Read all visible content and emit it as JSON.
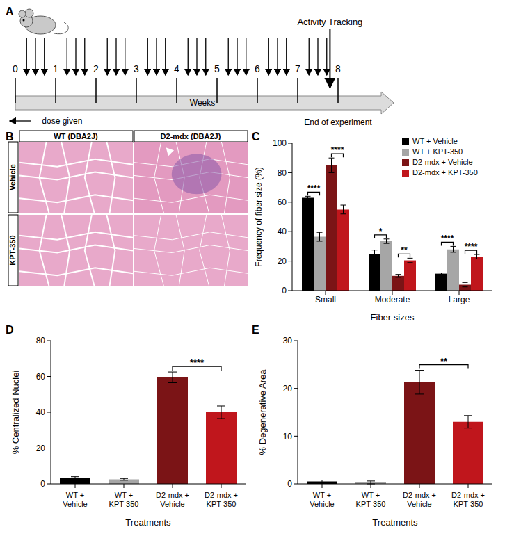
{
  "panel_labels": [
    "A",
    "B",
    "C",
    "D",
    "E"
  ],
  "timeline": {
    "xlim": [
      0,
      8
    ],
    "xticks": [
      0,
      1,
      2,
      3,
      4,
      5,
      6,
      7,
      8
    ],
    "axis_label": "Weeks",
    "doses": [
      0.28,
      0.5,
      0.72,
      1.28,
      1.5,
      1.72,
      2.28,
      2.5,
      2.72,
      3.28,
      3.5,
      3.72,
      4.28,
      4.5,
      4.72,
      5.28,
      5.5,
      5.72,
      6.28,
      6.5,
      6.72,
      7.28,
      7.5,
      7.72
    ],
    "dose_legend": "= dose given",
    "events": [
      {
        "x": 7.8,
        "label": "Activity Tracking"
      }
    ],
    "end_label": "End of experiment"
  },
  "histology": {
    "columns": [
      "WT (DBA2J)",
      "D2-mdx (DBA2J)"
    ],
    "rows": [
      "Vehicle",
      "KPT-350"
    ]
  },
  "chart_data": [
    {
      "type": "bar",
      "categories": [
        "Small",
        "Moderate",
        "Large"
      ],
      "series": [
        {
          "name": "WT + Vehicle",
          "color": "#000000",
          "values": [
            63,
            25,
            11.5
          ],
          "errors": [
            1,
            2.5,
            0.5
          ]
        },
        {
          "name": "WT + KPT-350",
          "color": "#a6a6a6",
          "values": [
            36.5,
            33.5,
            28
          ],
          "errors": [
            3,
            1.5,
            2
          ]
        },
        {
          "name": "D2-mdx + Vehicle",
          "color": "#7b1416",
          "values": [
            85,
            10,
            4
          ],
          "errors": [
            5,
            1,
            1.5
          ]
        },
        {
          "name": "D2-mdx + KPT-350",
          "color": "#c0161c",
          "values": [
            55,
            20.5,
            23
          ],
          "errors": [
            3,
            1.5,
            1.5
          ]
        }
      ],
      "ylim": [
        0,
        100
      ],
      "yticks": [
        0,
        20,
        40,
        60,
        80,
        100
      ],
      "y_label": "Frequency of fiber size (%)",
      "x_label": "Fiber sizes",
      "legend": "upper right",
      "significance": [
        {
          "category": "Small",
          "pair": [
            "WT + Vehicle",
            "WT + KPT-350"
          ],
          "label": "****"
        },
        {
          "category": "Small",
          "pair": [
            "D2-mdx + Vehicle",
            "D2-mdx + KPT-350"
          ],
          "label": "****"
        },
        {
          "category": "Moderate",
          "pair": [
            "WT + Vehicle",
            "WT + KPT-350"
          ],
          "label": "*"
        },
        {
          "category": "Moderate",
          "pair": [
            "D2-mdx + Vehicle",
            "D2-mdx + KPT-350"
          ],
          "label": "**"
        },
        {
          "category": "Large",
          "pair": [
            "WT + Vehicle",
            "WT + KPT-350"
          ],
          "label": "****"
        },
        {
          "category": "Large",
          "pair": [
            "D2-mdx + Vehicle",
            "D2-mdx + KPT-350"
          ],
          "label": "****"
        }
      ]
    },
    {
      "type": "bar",
      "categories": [
        "WT + Vehicle",
        "WT + KPT-350",
        "D2-mdx + Vehicle",
        "D2-mdx + KPT-350"
      ],
      "values": [
        3.5,
        2.5,
        59.5,
        40
      ],
      "errors": [
        0.5,
        0.5,
        3,
        3.5
      ],
      "colors": [
        "#000000",
        "#a6a6a6",
        "#7b1416",
        "#c0161c"
      ],
      "ylim": [
        0,
        80
      ],
      "yticks": [
        0,
        20,
        40,
        60,
        80
      ],
      "y_label": "% Centralized Nuclei",
      "x_label": "Treatments",
      "significance": [
        {
          "pair": [
            "D2-mdx + Vehicle",
            "D2-mdx + KPT-350"
          ],
          "label": "****"
        }
      ]
    },
    {
      "type": "bar",
      "categories": [
        "WT + Vehicle",
        "WT + KPT-350",
        "D2-mdx + Vehicle",
        "D2-mdx + KPT-350"
      ],
      "values": [
        0.5,
        0.3,
        21.3,
        13
      ],
      "errors": [
        0.3,
        0.3,
        2.5,
        1.3
      ],
      "colors": [
        "#000000",
        "#a6a6a6",
        "#7b1416",
        "#c0161c"
      ],
      "ylim": [
        0,
        30
      ],
      "yticks": [
        0,
        10,
        20,
        30
      ],
      "y_label": "% Degenerative Area",
      "x_label": "Treatments",
      "significance": [
        {
          "pair": [
            "D2-mdx + Vehicle",
            "D2-mdx + KPT-350"
          ],
          "label": "**"
        }
      ]
    }
  ]
}
